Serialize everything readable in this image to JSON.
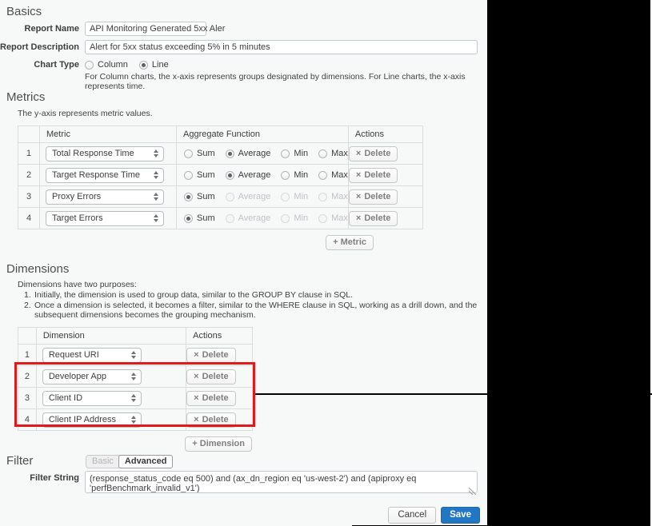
{
  "basics": {
    "heading": "Basics",
    "report_name": {
      "label": "Report Name",
      "value": "API Monitoring Generated 5xx Aler"
    },
    "report_description": {
      "label": "Report Description",
      "value": "Alert for 5xx status exceeding 5% in 5 minutes"
    },
    "chart_type": {
      "label": "Chart Type",
      "options": [
        "Column",
        "Line"
      ],
      "selected": "Line",
      "help": "For Column charts, the x-axis represents groups designated by dimensions. For Line charts, the x-axis represents time."
    }
  },
  "metrics": {
    "heading": "Metrics",
    "subtitle": "The y-axis represents metric values.",
    "headers": [
      "Metric",
      "Aggregate Function",
      "Actions"
    ],
    "aggregate_options": [
      "Sum",
      "Average",
      "Min",
      "Max"
    ],
    "rows": [
      {
        "index": "1",
        "metric": "Total Response Time",
        "selected_aggregate": "Average",
        "unselected_disabled": false
      },
      {
        "index": "2",
        "metric": "Target Response Time",
        "selected_aggregate": "Average",
        "unselected_disabled": false
      },
      {
        "index": "3",
        "metric": "Proxy Errors",
        "selected_aggregate": "Sum",
        "unselected_disabled": true
      },
      {
        "index": "4",
        "metric": "Target Errors",
        "selected_aggregate": "Sum",
        "unselected_disabled": true
      }
    ],
    "delete_icon": "×",
    "delete_label": "Delete",
    "add_label": "+ Metric"
  },
  "dimensions": {
    "heading": "Dimensions",
    "intro": "Dimensions have two purposes:",
    "purposes": [
      {
        "num": "1.",
        "text": "Initially, the dimension is used to group data, similar to the GROUP BY clause in SQL."
      },
      {
        "num": "2.",
        "text": "Once a dimension is selected, it becomes a filter, similar to the WHERE clause in SQL, working as a drill down, and the subsequent dimensions becomes the grouping mechanism."
      }
    ],
    "headers": [
      "Dimension",
      "Actions"
    ],
    "rows": [
      {
        "index": "1",
        "dimension": "Request URI"
      },
      {
        "index": "2",
        "dimension": "Developer App"
      },
      {
        "index": "3",
        "dimension": "Client ID"
      },
      {
        "index": "4",
        "dimension": "Client IP Address"
      }
    ],
    "delete_icon": "×",
    "delete_label": "Delete",
    "add_label": "+ Dimension",
    "highlight_color": "#e01a1a"
  },
  "filter": {
    "heading": "Filter",
    "mode_options": [
      "Basic",
      "Advanced"
    ],
    "selected_mode": "Advanced",
    "filter_string": {
      "label": "Filter String",
      "value": "(response_status_code eq 500) and (ax_dn_region eq 'us-west-2') and (apiproxy eq 'perfBenchmark_invalid_v1')"
    }
  },
  "footer": {
    "cancel_label": "Cancel",
    "save_label": "Save",
    "save_color": "#2277c4"
  }
}
